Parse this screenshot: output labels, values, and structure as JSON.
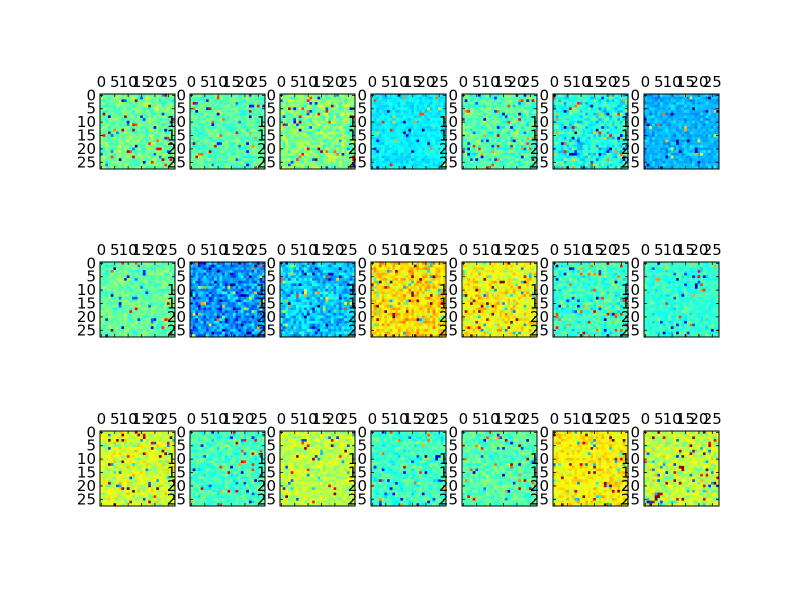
{
  "chart_data": {
    "type": "heatmap",
    "layout": {
      "rows": 3,
      "cols": 7
    },
    "colormap": "jet",
    "value_range": [
      0,
      1
    ],
    "grid": false,
    "legend": "none",
    "image_size": [
      28,
      28
    ],
    "x_ticks": [
      "0",
      "5",
      "10",
      "15",
      "20",
      "25"
    ],
    "y_ticks": [
      "0",
      "5",
      "10",
      "15",
      "20",
      "25"
    ],
    "axis_tick_positions": [
      0,
      5,
      10,
      15,
      20,
      25
    ],
    "panels": [
      {
        "row": 0,
        "col": 0,
        "mean_value": 0.48,
        "spread": 0.09,
        "outlier_rate": 0.06
      },
      {
        "row": 0,
        "col": 1,
        "mean_value": 0.46,
        "spread": 0.08,
        "outlier_rate": 0.05
      },
      {
        "row": 0,
        "col": 2,
        "mean_value": 0.5,
        "spread": 0.1,
        "outlier_rate": 0.07
      },
      {
        "row": 0,
        "col": 3,
        "mean_value": 0.36,
        "spread": 0.05,
        "outlier_rate": 0.04
      },
      {
        "row": 0,
        "col": 4,
        "mean_value": 0.45,
        "spread": 0.1,
        "outlier_rate": 0.07
      },
      {
        "row": 0,
        "col": 5,
        "mean_value": 0.4,
        "spread": 0.11,
        "outlier_rate": 0.08
      },
      {
        "row": 0,
        "col": 6,
        "mean_value": 0.3,
        "spread": 0.06,
        "outlier_rate": 0.05
      },
      {
        "row": 1,
        "col": 0,
        "mean_value": 0.47,
        "spread": 0.08,
        "outlier_rate": 0.05
      },
      {
        "row": 1,
        "col": 1,
        "mean_value": 0.27,
        "spread": 0.12,
        "outlier_rate": 0.07
      },
      {
        "row": 1,
        "col": 2,
        "mean_value": 0.32,
        "spread": 0.1,
        "outlier_rate": 0.07
      },
      {
        "row": 1,
        "col": 3,
        "mean_value": 0.66,
        "spread": 0.1,
        "outlier_rate": 0.07
      },
      {
        "row": 1,
        "col": 4,
        "mean_value": 0.62,
        "spread": 0.1,
        "outlier_rate": 0.08
      },
      {
        "row": 1,
        "col": 5,
        "mean_value": 0.43,
        "spread": 0.09,
        "outlier_rate": 0.07
      },
      {
        "row": 1,
        "col": 6,
        "mean_value": 0.42,
        "spread": 0.07,
        "outlier_rate": 0.05
      },
      {
        "row": 2,
        "col": 0,
        "mean_value": 0.58,
        "spread": 0.1,
        "outlier_rate": 0.08
      },
      {
        "row": 2,
        "col": 1,
        "mean_value": 0.44,
        "spread": 0.08,
        "outlier_rate": 0.05
      },
      {
        "row": 2,
        "col": 2,
        "mean_value": 0.56,
        "spread": 0.08,
        "outlier_rate": 0.06
      },
      {
        "row": 2,
        "col": 3,
        "mean_value": 0.43,
        "spread": 0.08,
        "outlier_rate": 0.05
      },
      {
        "row": 2,
        "col": 4,
        "mean_value": 0.46,
        "spread": 0.08,
        "outlier_rate": 0.06
      },
      {
        "row": 2,
        "col": 5,
        "mean_value": 0.63,
        "spread": 0.08,
        "outlier_rate": 0.07
      },
      {
        "row": 2,
        "col": 6,
        "mean_value": 0.56,
        "spread": 0.1,
        "outlier_rate": 0.1
      }
    ]
  }
}
